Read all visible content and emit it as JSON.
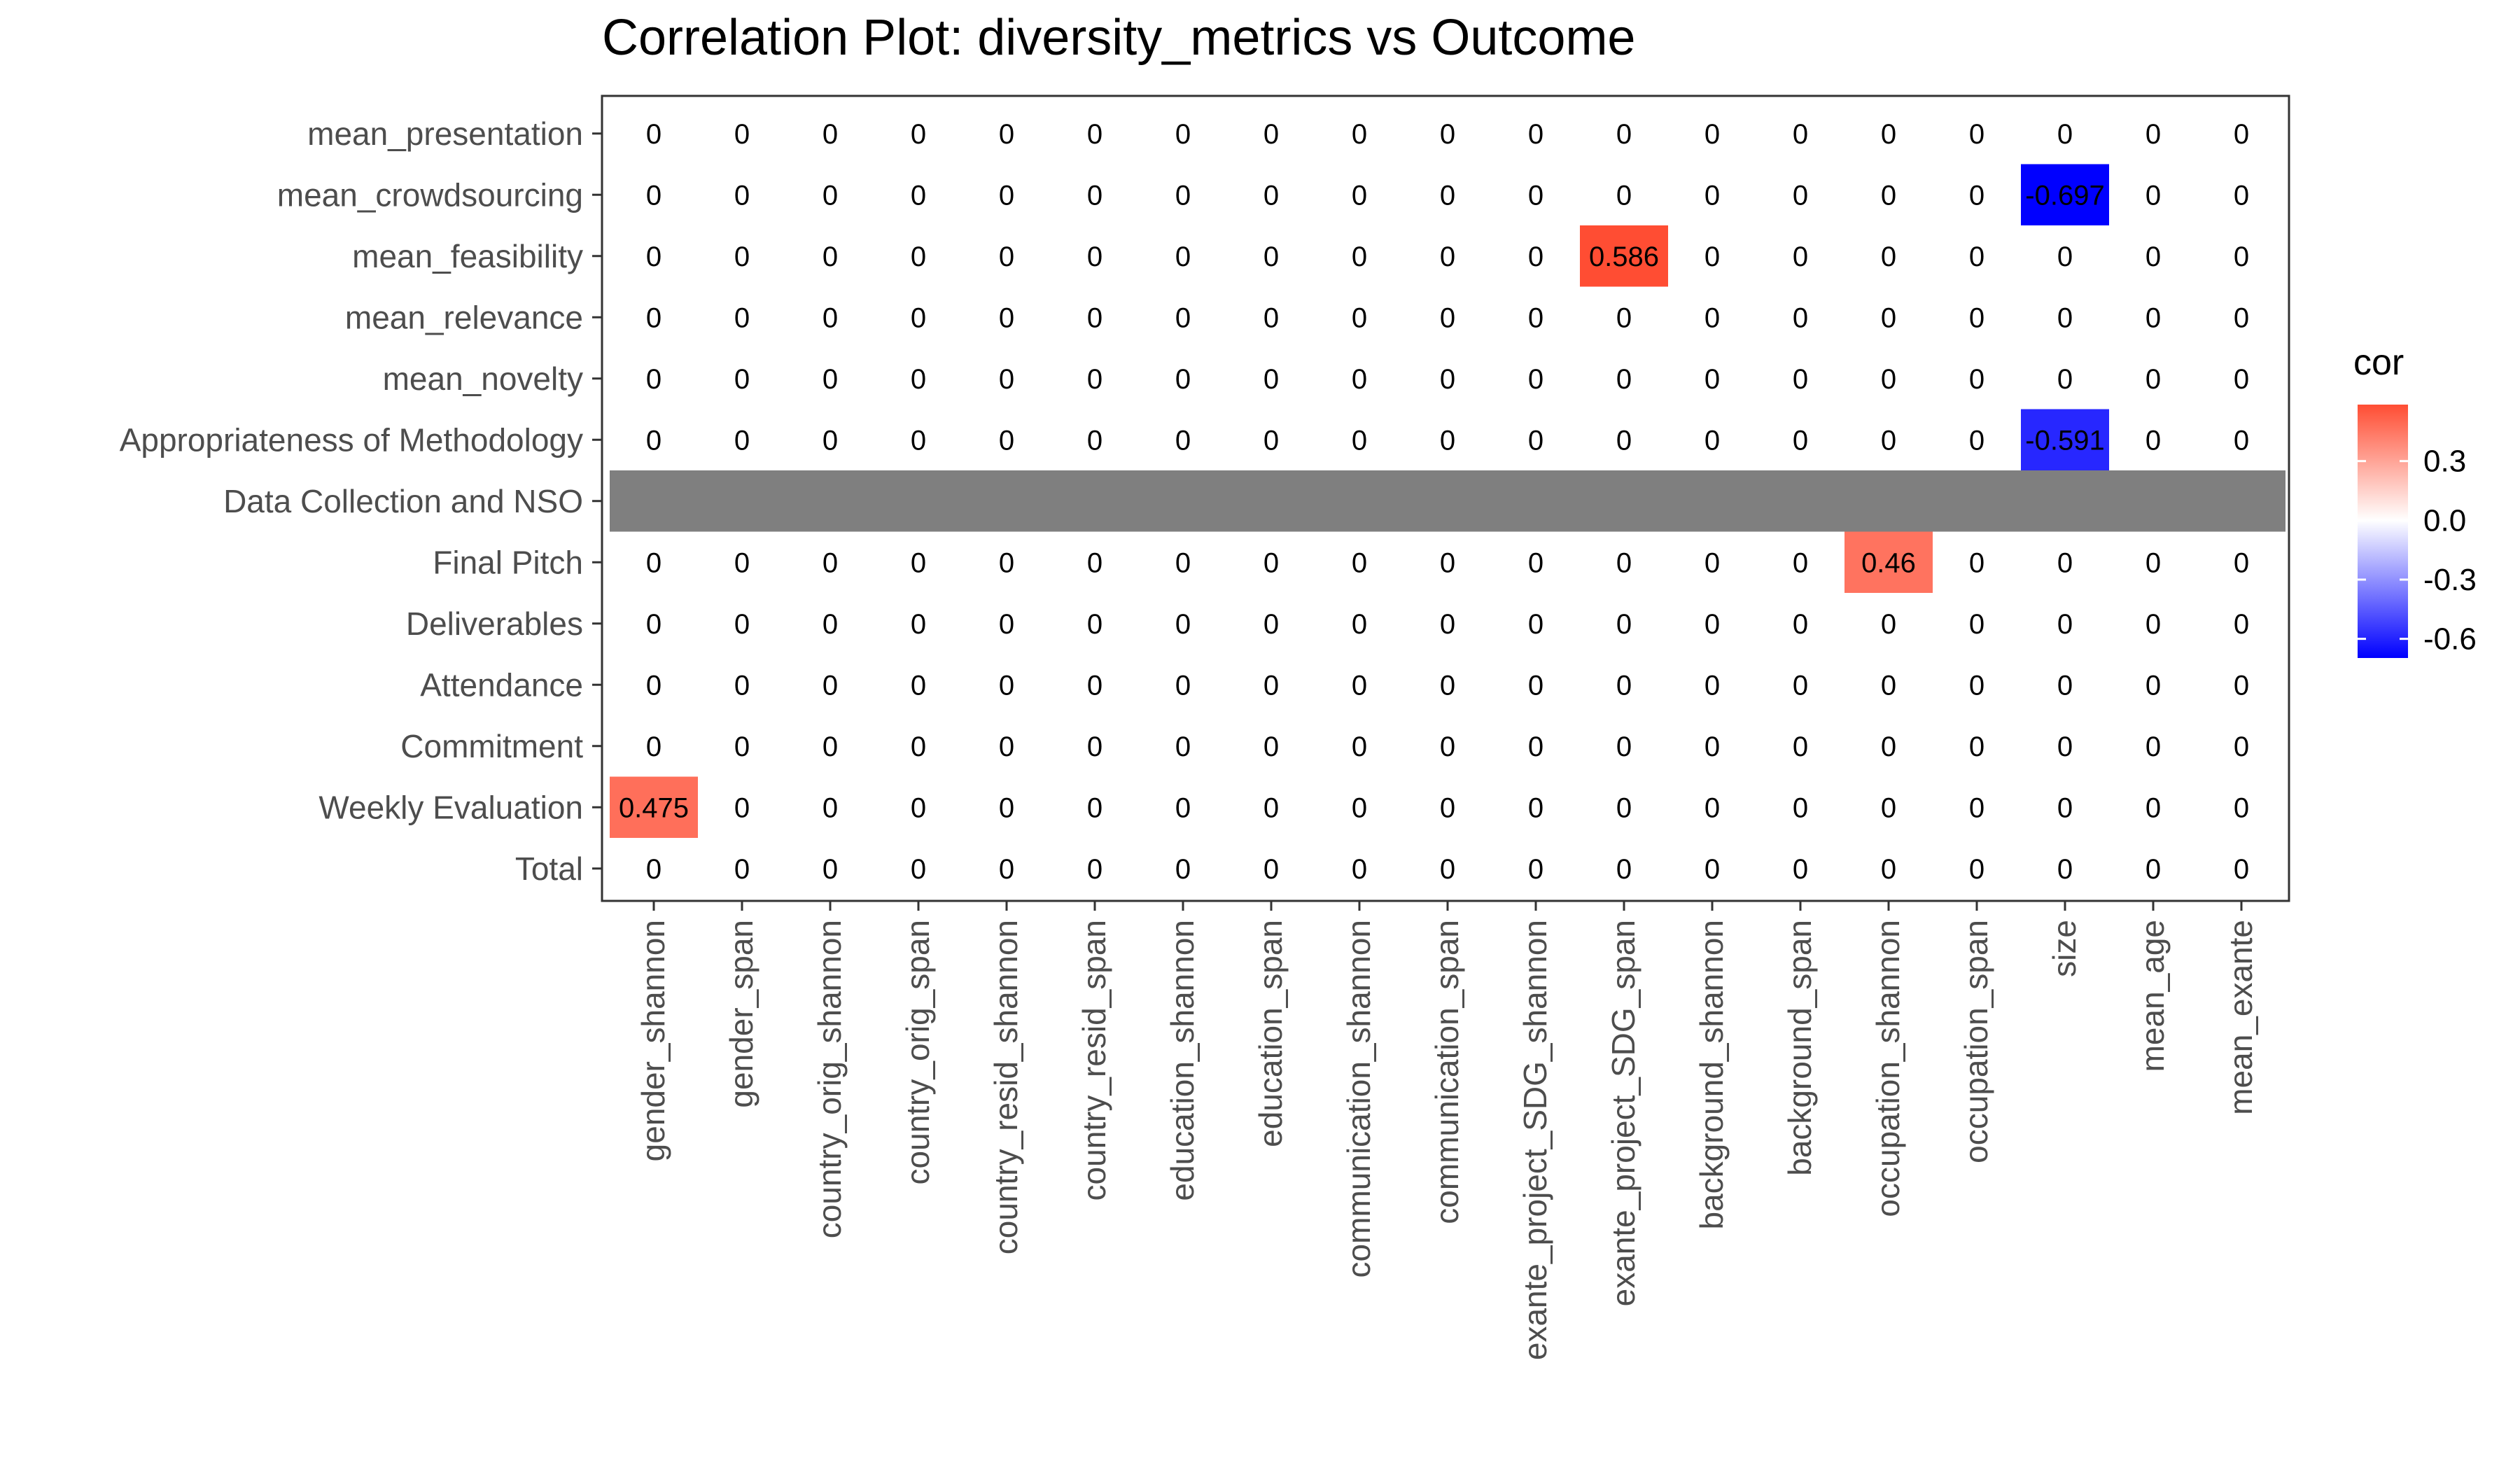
{
  "chart_data": {
    "type": "heatmap",
    "title": "Correlation Plot: diversity_metrics vs Outcome",
    "xlabel": "",
    "ylabel": "",
    "x_categories": [
      "gender_shannon",
      "gender_span",
      "country_orig_shannon",
      "country_orig_span",
      "country_resid_shannon",
      "country_resid_span",
      "education_shannon",
      "education_span",
      "communication_shannon",
      "communication_span",
      "exante_project_SDG_shannon",
      "exante_project_SDG_span",
      "background_shannon",
      "background_span",
      "occupation_shannon",
      "occupation_span",
      "size",
      "mean_age",
      "mean_exante"
    ],
    "y_categories": [
      "mean_presentation",
      "mean_crowdsourcing",
      "mean_feasibility",
      "mean_relevance",
      "mean_novelty",
      "Appropriateness of Methodology",
      "Data Collection and NSO",
      "Final Pitch",
      "Deliverables",
      "Attendance",
      "Commitment",
      "Weekly Evaluation",
      "Total"
    ],
    "values": [
      [
        0,
        0,
        0,
        0,
        0,
        0,
        0,
        0,
        0,
        0,
        0,
        0,
        0,
        0,
        0,
        0,
        0,
        0,
        0
      ],
      [
        0,
        0,
        0,
        0,
        0,
        0,
        0,
        0,
        0,
        0,
        0,
        0,
        0,
        0,
        0,
        0,
        -0.697,
        0,
        0
      ],
      [
        0,
        0,
        0,
        0,
        0,
        0,
        0,
        0,
        0,
        0,
        0,
        0.586,
        0,
        0,
        0,
        0,
        0,
        0,
        0
      ],
      [
        0,
        0,
        0,
        0,
        0,
        0,
        0,
        0,
        0,
        0,
        0,
        0,
        0,
        0,
        0,
        0,
        0,
        0,
        0
      ],
      [
        0,
        0,
        0,
        0,
        0,
        0,
        0,
        0,
        0,
        0,
        0,
        0,
        0,
        0,
        0,
        0,
        0,
        0,
        0
      ],
      [
        0,
        0,
        0,
        0,
        0,
        0,
        0,
        0,
        0,
        0,
        0,
        0,
        0,
        0,
        0,
        0,
        -0.591,
        0,
        0
      ],
      [
        null,
        null,
        null,
        null,
        null,
        null,
        null,
        null,
        null,
        null,
        null,
        null,
        null,
        null,
        null,
        null,
        null,
        null,
        null
      ],
      [
        0,
        0,
        0,
        0,
        0,
        0,
        0,
        0,
        0,
        0,
        0,
        0,
        0,
        0,
        0.46,
        0,
        0,
        0,
        0
      ],
      [
        0,
        0,
        0,
        0,
        0,
        0,
        0,
        0,
        0,
        0,
        0,
        0,
        0,
        0,
        0,
        0,
        0,
        0,
        0
      ],
      [
        0,
        0,
        0,
        0,
        0,
        0,
        0,
        0,
        0,
        0,
        0,
        0,
        0,
        0,
        0,
        0,
        0,
        0,
        0
      ],
      [
        0,
        0,
        0,
        0,
        0,
        0,
        0,
        0,
        0,
        0,
        0,
        0,
        0,
        0,
        0,
        0,
        0,
        0,
        0
      ],
      [
        0.475,
        0,
        0,
        0,
        0,
        0,
        0,
        0,
        0,
        0,
        0,
        0,
        0,
        0,
        0,
        0,
        0,
        0,
        0
      ],
      [
        0,
        0,
        0,
        0,
        0,
        0,
        0,
        0,
        0,
        0,
        0,
        0,
        0,
        0,
        0,
        0,
        0,
        0,
        0
      ]
    ],
    "legend": {
      "title": "cor",
      "ticks": [
        0.3,
        0.0,
        -0.3,
        -0.6
      ],
      "tick_labels": [
        "0.3",
        "0.0",
        "-0.3",
        "-0.6"
      ],
      "range": [
        -0.697,
        0.586
      ],
      "placement": "right"
    },
    "colors": {
      "low": "#0000ff",
      "mid": "#ffffff",
      "high": "#ff4d33",
      "missing": "#7f7f7f",
      "panel_border": "#333333",
      "axis_text": "#4d4d4d",
      "cell_text": "#000000"
    },
    "grid": false
  }
}
